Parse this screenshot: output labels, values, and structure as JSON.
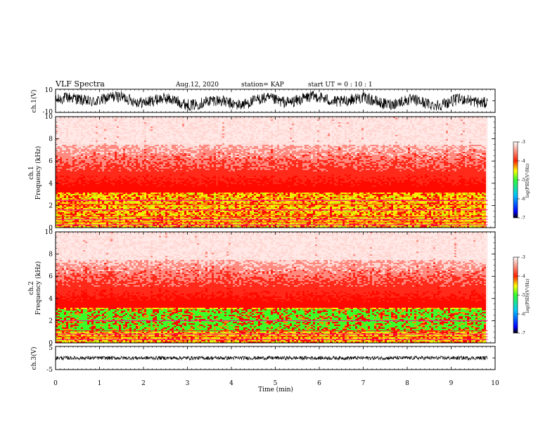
{
  "header": {
    "title": "VLF Spectra",
    "date": "Aug.12, 2020",
    "station": "station= KAP",
    "start": "start  UT =   0  : 10 : 1"
  },
  "chart_data": [
    {
      "type": "line",
      "name": "ch1-waveform",
      "ylabel": "ch.1(V)",
      "ylim": [
        -10,
        10
      ],
      "y_tick_labels": [
        "10",
        "-10"
      ]
    },
    {
      "type": "heatmap",
      "name": "ch1-spectrogram",
      "ylabel": "ch.1 Frequency  (kHz)",
      "ylabel_channel": "ch.1",
      "ylabel_quantity": "Frequency  (kHz)",
      "ylim": [
        0,
        10
      ],
      "y_ticks": [
        0,
        2,
        4,
        6,
        8,
        10
      ],
      "y_tick_labels": [
        "0",
        "2",
        "4",
        "6",
        "8",
        "10"
      ],
      "colorbar": {
        "label": "log(PSD)(V²/Hz)",
        "range": [
          -7,
          -3
        ],
        "tick_labels": [
          "-3",
          "-4",
          "-5",
          "-6",
          "-7"
        ]
      }
    },
    {
      "type": "heatmap",
      "name": "ch2-spectrogram",
      "ylabel": "ch.2 Frequency  (kHz)",
      "ylabel_channel": "ch.2",
      "ylabel_quantity": "Frequency  (kHz)",
      "ylim": [
        0,
        10
      ],
      "y_ticks": [
        0,
        2,
        4,
        6,
        8,
        10
      ],
      "y_tick_labels": [
        "0",
        "2",
        "4",
        "6",
        "8",
        "10"
      ],
      "colorbar": {
        "label": "log(PSD)(V²/Hz)",
        "range": [
          -7,
          -3
        ],
        "tick_labels": [
          "-3",
          "-4",
          "-5",
          "-6",
          "-7"
        ]
      }
    },
    {
      "type": "line",
      "name": "ch3-waveform",
      "ylabel": "ch.3(V)",
      "ylim": [
        -5,
        5
      ],
      "y_tick_labels": [
        "5",
        "-5"
      ]
    }
  ],
  "xaxis": {
    "label": "Time  (min)",
    "xlim": [
      0,
      10
    ],
    "ticks": [
      0,
      1,
      2,
      3,
      4,
      5,
      6,
      7,
      8,
      9,
      10
    ],
    "tick_labels": [
      "0",
      "1",
      "2",
      "3",
      "4",
      "5",
      "6",
      "7",
      "8",
      "9",
      "10"
    ],
    "data_end": 9.83
  }
}
